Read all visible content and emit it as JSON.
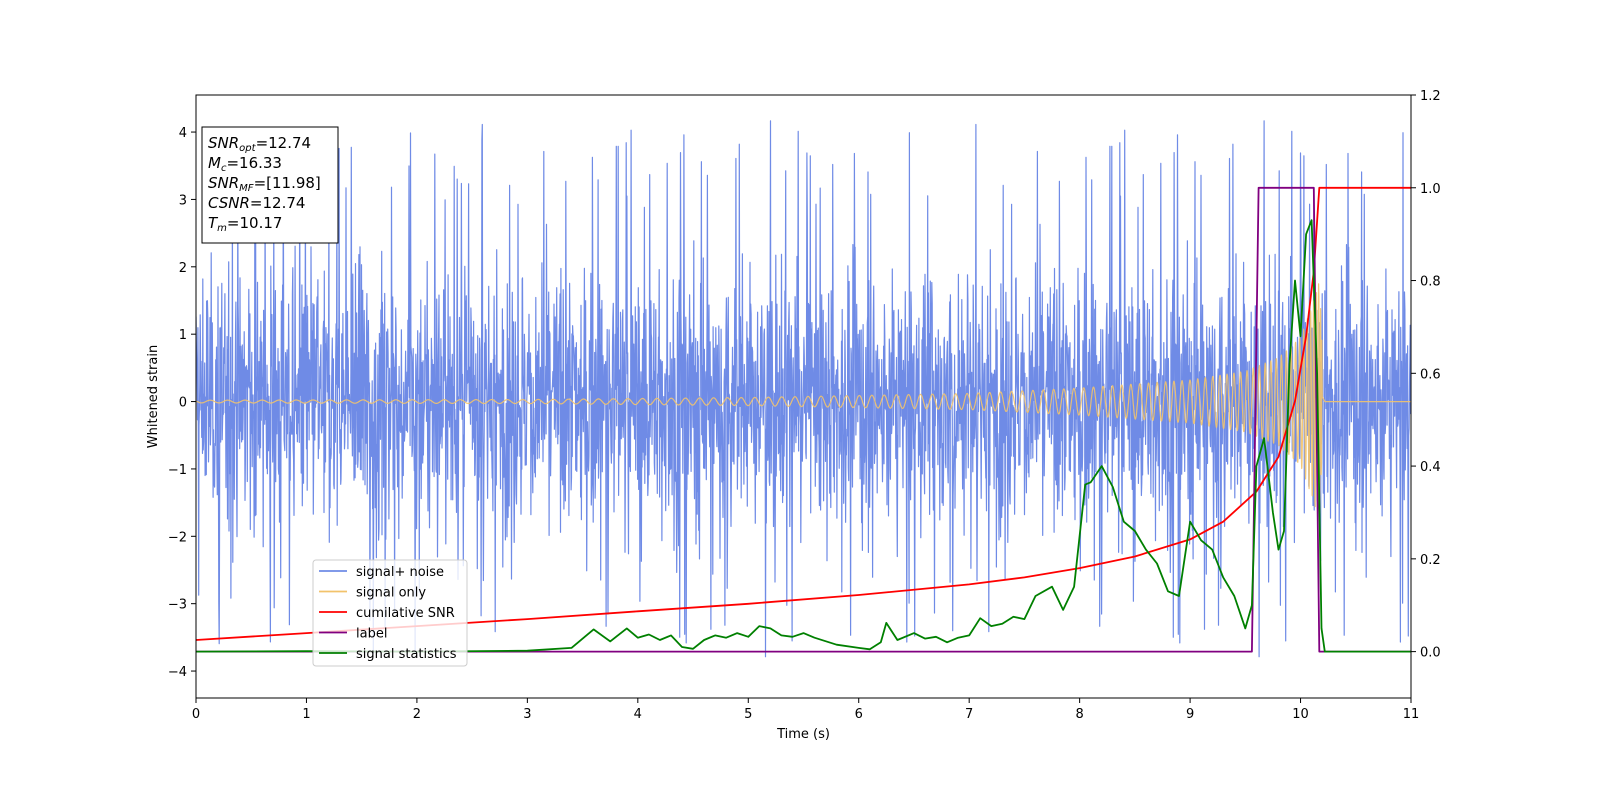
{
  "chart_data": {
    "type": "line",
    "xlabel": "Time (s)",
    "ylabel": "Whitened strain",
    "xlim": [
      0,
      11
    ],
    "ylim_left": [
      -4.4,
      4.55
    ],
    "ylim_right": [
      -0.1,
      1.2
    ],
    "x_ticks": [
      "0",
      "1",
      "2",
      "3",
      "4",
      "5",
      "6",
      "7",
      "8",
      "9",
      "10",
      "11"
    ],
    "y_ticks_left": [
      "−4",
      "−3",
      "−2",
      "−1",
      "0",
      "1",
      "2",
      "3",
      "4"
    ],
    "y_ticks_right": [
      "0.0",
      "0.2",
      "0.4",
      "0.6",
      "0.8",
      "1.0",
      "1.2"
    ],
    "grid": false,
    "legend_position": "lower-left",
    "legend": [
      {
        "label": "signal+ noise",
        "color": "#6f8be6"
      },
      {
        "label": "signal only",
        "color": "#f2c36b"
      },
      {
        "label": "cumilative SNR",
        "color": "#ff0000"
      },
      {
        "label": "label",
        "color": "#800080"
      },
      {
        "label": "signal statistics",
        "color": "#008000"
      }
    ],
    "annotation": {
      "lines": [
        {
          "sym": "SNR",
          "sub": "opt",
          "val": "=12.74"
        },
        {
          "sym": "M",
          "sub": "c",
          "val": "=16.33"
        },
        {
          "sym": "SNR",
          "sub": "MF",
          "val": "=[11.98]"
        },
        {
          "sym": "CSNR",
          "sub": "",
          "val": "=12.74"
        },
        {
          "sym": "T",
          "sub": "m",
          "val": "=10.17"
        }
      ]
    },
    "series": [
      {
        "name": "signal+ noise",
        "axis": "left",
        "color": "#6f8be6",
        "noise_sigma": 0.95,
        "typical_min": -2.5,
        "typical_max": 2.9,
        "peak_max": 4.2,
        "peak_min": -3.8
      },
      {
        "name": "signal only",
        "axis": "left",
        "color": "#f2c36b",
        "merger_time": 10.17,
        "envelope": [
          [
            0,
            0.02
          ],
          [
            3,
            0.03
          ],
          [
            5,
            0.06
          ],
          [
            7,
            0.12
          ],
          [
            8,
            0.2
          ],
          [
            9,
            0.32
          ],
          [
            9.5,
            0.45
          ],
          [
            9.8,
            0.65
          ],
          [
            10.0,
            0.95
          ],
          [
            10.1,
            1.4
          ],
          [
            10.17,
            1.8
          ],
          [
            10.22,
            0
          ]
        ]
      },
      {
        "name": "cumilative SNR",
        "axis": "right",
        "color": "#ff0000",
        "points": [
          [
            0,
            0.025
          ],
          [
            1,
            0.04
          ],
          [
            2,
            0.055
          ],
          [
            3,
            0.07
          ],
          [
            4,
            0.087
          ],
          [
            5,
            0.103
          ],
          [
            6,
            0.122
          ],
          [
            7,
            0.145
          ],
          [
            7.5,
            0.16
          ],
          [
            8,
            0.18
          ],
          [
            8.5,
            0.205
          ],
          [
            9,
            0.242
          ],
          [
            9.3,
            0.28
          ],
          [
            9.6,
            0.345
          ],
          [
            9.8,
            0.42
          ],
          [
            9.95,
            0.54
          ],
          [
            10.05,
            0.68
          ],
          [
            10.12,
            0.82
          ],
          [
            10.17,
            1.0
          ],
          [
            11,
            1.0
          ]
        ]
      },
      {
        "name": "label",
        "axis": "right",
        "color": "#800080",
        "points": [
          [
            0,
            0
          ],
          [
            9.56,
            0
          ],
          [
            9.62,
            1.0
          ],
          [
            10.12,
            1.0
          ],
          [
            10.17,
            0
          ],
          [
            11,
            0
          ]
        ]
      },
      {
        "name": "signal statistics",
        "axis": "right",
        "color": "#008000",
        "points": [
          [
            0,
            0
          ],
          [
            1,
            0.001
          ],
          [
            2,
            0
          ],
          [
            3,
            0.002
          ],
          [
            3.4,
            0.008
          ],
          [
            3.6,
            0.048
          ],
          [
            3.75,
            0.022
          ],
          [
            3.9,
            0.05
          ],
          [
            4.0,
            0.03
          ],
          [
            4.1,
            0.037
          ],
          [
            4.2,
            0.025
          ],
          [
            4.3,
            0.035
          ],
          [
            4.4,
            0.01
          ],
          [
            4.5,
            0.006
          ],
          [
            4.6,
            0.025
          ],
          [
            4.7,
            0.035
          ],
          [
            4.8,
            0.03
          ],
          [
            4.9,
            0.04
          ],
          [
            5.0,
            0.032
          ],
          [
            5.1,
            0.055
          ],
          [
            5.2,
            0.05
          ],
          [
            5.3,
            0.035
          ],
          [
            5.4,
            0.032
          ],
          [
            5.5,
            0.04
          ],
          [
            5.6,
            0.03
          ],
          [
            5.8,
            0.015
          ],
          [
            6.0,
            0.008
          ],
          [
            6.1,
            0.005
          ],
          [
            6.2,
            0.02
          ],
          [
            6.25,
            0.062
          ],
          [
            6.35,
            0.025
          ],
          [
            6.5,
            0.04
          ],
          [
            6.6,
            0.028
          ],
          [
            6.7,
            0.032
          ],
          [
            6.8,
            0.02
          ],
          [
            6.9,
            0.03
          ],
          [
            7.0,
            0.035
          ],
          [
            7.1,
            0.072
          ],
          [
            7.2,
            0.055
          ],
          [
            7.3,
            0.06
          ],
          [
            7.4,
            0.075
          ],
          [
            7.5,
            0.07
          ],
          [
            7.6,
            0.12
          ],
          [
            7.75,
            0.14
          ],
          [
            7.85,
            0.09
          ],
          [
            7.95,
            0.14
          ],
          [
            8.05,
            0.36
          ],
          [
            8.1,
            0.365
          ],
          [
            8.2,
            0.4
          ],
          [
            8.3,
            0.355
          ],
          [
            8.4,
            0.28
          ],
          [
            8.5,
            0.26
          ],
          [
            8.6,
            0.22
          ],
          [
            8.7,
            0.19
          ],
          [
            8.8,
            0.13
          ],
          [
            8.9,
            0.12
          ],
          [
            9.0,
            0.28
          ],
          [
            9.1,
            0.24
          ],
          [
            9.2,
            0.22
          ],
          [
            9.3,
            0.16
          ],
          [
            9.4,
            0.12
          ],
          [
            9.5,
            0.05
          ],
          [
            9.56,
            0.1
          ],
          [
            9.6,
            0.4
          ],
          [
            9.67,
            0.46
          ],
          [
            9.75,
            0.3
          ],
          [
            9.8,
            0.22
          ],
          [
            9.85,
            0.26
          ],
          [
            9.9,
            0.62
          ],
          [
            9.95,
            0.8
          ],
          [
            10.0,
            0.68
          ],
          [
            10.05,
            0.9
          ],
          [
            10.1,
            0.93
          ],
          [
            10.15,
            0.6
          ],
          [
            10.19,
            0.05
          ],
          [
            10.22,
            0
          ],
          [
            11,
            0
          ]
        ]
      }
    ]
  }
}
